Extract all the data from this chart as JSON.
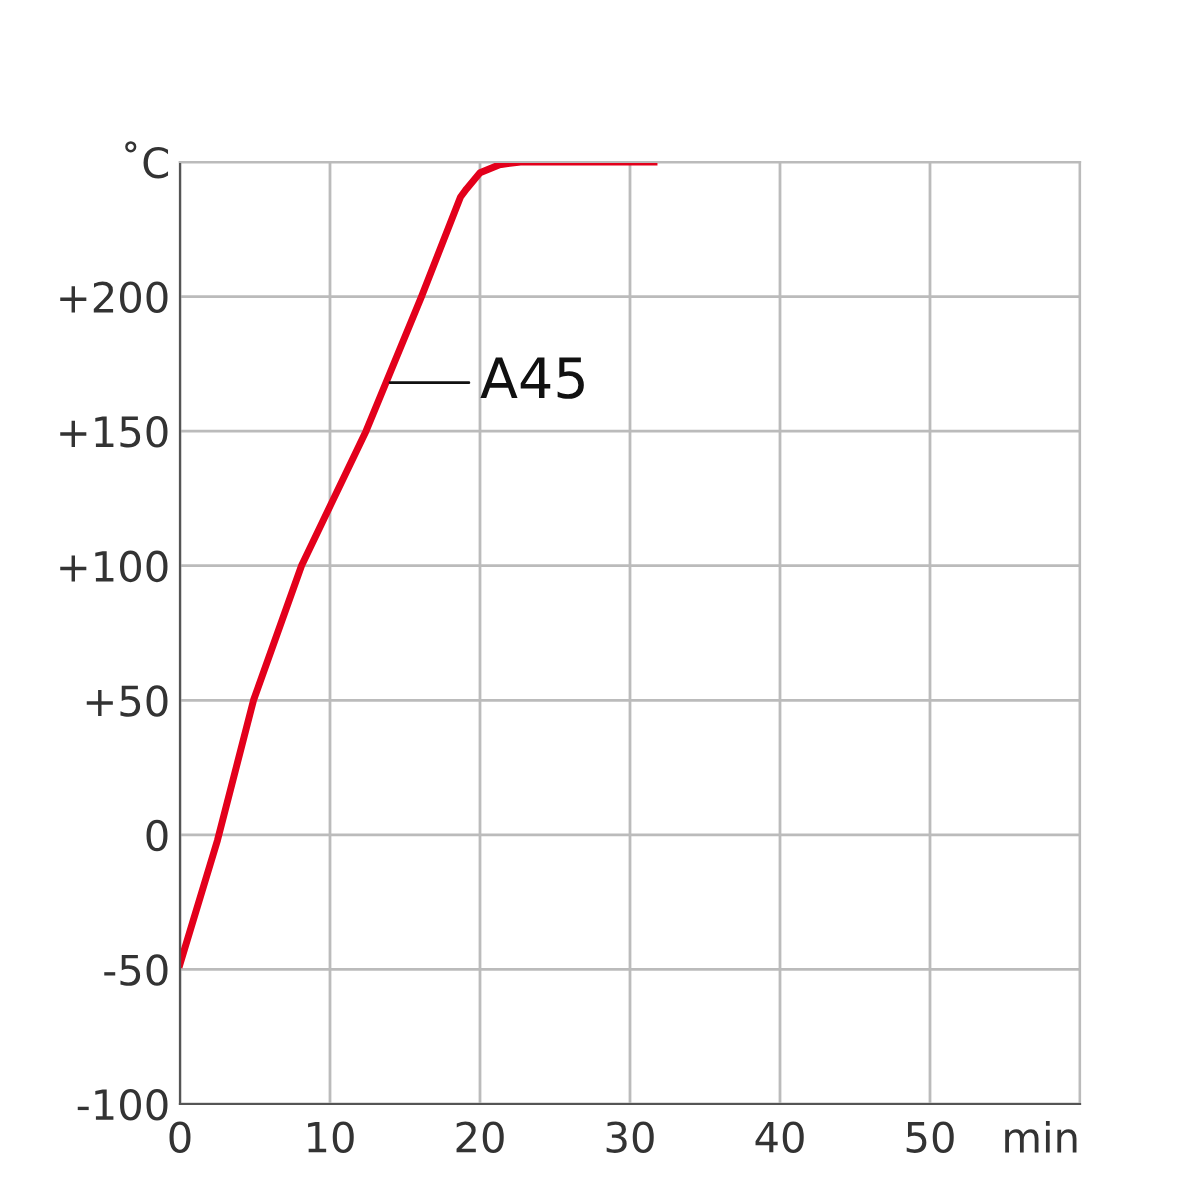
{
  "chart_data": {
    "type": "line",
    "xlabel": "min",
    "series": [
      {
        "color": "#e3001b",
        "x": [
          0,
          2.5,
          4.9,
          8.1,
          12.4,
          16.1,
          18.7,
          19.1,
          20,
          21.3,
          22.7,
          31.6
        ],
        "values": [
          -48,
          -2,
          50,
          100,
          150,
          200,
          237,
          240,
          246,
          249,
          250,
          250
        ]
      }
    ],
    "xlim": [
      0,
      60
    ],
    "xticks": [
      0,
      10,
      20,
      30,
      40,
      50,
      {
        "value": 60,
        "label": null
      }
    ],
    "ylim": [
      -100,
      250
    ],
    "yticks": [
      -100,
      -50,
      0,
      {
        "value": 50,
        "label": "+50"
      },
      {
        "value": 100,
        "label": "+100"
      },
      {
        "value": 150,
        "label": "+150"
      },
      {
        "value": 200,
        "label": "+200"
      },
      {
        "value": 250,
        "label": "˚C"
      }
    ],
    "grid": true,
    "line_style": "solid",
    "marker": "none",
    "annotations": [
      {
        "text": "A45",
        "x": 14,
        "y": 168
      }
    ]
  }
}
